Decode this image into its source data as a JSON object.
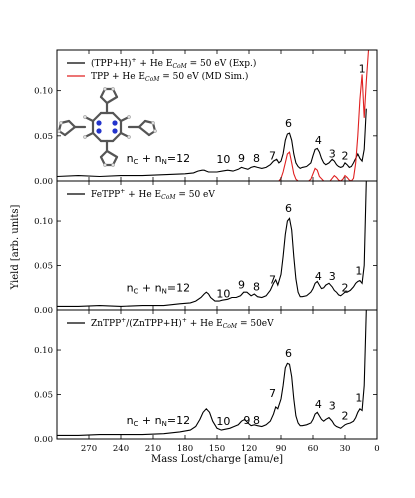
{
  "figure": {
    "ylabel": "Yield [arb. units]",
    "xlabel": "Mass Lost/charge [amu/e]"
  },
  "chart_data": [
    {
      "type": "line",
      "panel": "top",
      "xlim": [
        300,
        0
      ],
      "ylim": [
        0,
        0.145
      ],
      "yticks": [
        "0.00",
        "0.05",
        "0.10"
      ],
      "ytick_values": [
        0.0,
        0.05,
        0.1
      ],
      "xticks": [
        "270",
        "240",
        "210",
        "180",
        "150",
        "120",
        "90",
        "60",
        "30",
        "0"
      ],
      "xtick_values": [
        270,
        240,
        210,
        180,
        150,
        120,
        90,
        60,
        30,
        0
      ],
      "legend_position": "top-left",
      "series": [
        {
          "name": "(TPP+H)⁺ + He Eₖₒₘ = 50 eV (Exp.)",
          "legend_main": "(TPP+H)",
          "legend_sup": "+",
          "legend_mid": " + He E",
          "legend_sub": "CoM",
          "legend_tail": " = 50 eV (Exp.)",
          "color": "#000000",
          "x": [
            300,
            280,
            260,
            240,
            220,
            200,
            180,
            172,
            168,
            164,
            162,
            160,
            158,
            155,
            150,
            145,
            140,
            135,
            130,
            127,
            124,
            121,
            118,
            115,
            112,
            108,
            104,
            100,
            97,
            94,
            92,
            90,
            88,
            86,
            84,
            82,
            80,
            78,
            76,
            74,
            72,
            70,
            66,
            62,
            60,
            58,
            56,
            54,
            52,
            50,
            48,
            45,
            42,
            40,
            38,
            36,
            34,
            32,
            30,
            28,
            26,
            24,
            22,
            20,
            18,
            16,
            14,
            12,
            10
          ],
          "y": [
            0.005,
            0.006,
            0.005,
            0.006,
            0.006,
            0.007,
            0.008,
            0.009,
            0.011,
            0.012,
            0.012,
            0.011,
            0.01,
            0.01,
            0.01,
            0.011,
            0.012,
            0.011,
            0.013,
            0.015,
            0.014,
            0.013,
            0.015,
            0.016,
            0.015,
            0.014,
            0.015,
            0.018,
            0.022,
            0.024,
            0.02,
            0.022,
            0.03,
            0.045,
            0.052,
            0.053,
            0.045,
            0.03,
            0.02,
            0.016,
            0.014,
            0.015,
            0.016,
            0.02,
            0.028,
            0.035,
            0.036,
            0.032,
            0.025,
            0.02,
            0.018,
            0.02,
            0.024,
            0.022,
            0.018,
            0.016,
            0.015,
            0.016,
            0.02,
            0.018,
            0.015,
            0.016,
            0.02,
            0.025,
            0.03,
            0.025,
            0.022,
            0.035,
            0.08
          ]
        },
        {
          "name": "TPP + He Eₖₒₘ = 50 eV (MD Sim.)",
          "legend_main": "TPP",
          "legend_sup": "",
          "legend_mid": " + He E",
          "legend_sub": "CoM",
          "legend_tail": " = 50 eV (MD Sim.)",
          "color": "#e02020",
          "x": [
            300,
            100,
            92,
            90,
            88,
            86,
            84,
            82,
            80,
            78,
            76,
            74,
            70,
            64,
            62,
            60,
            58,
            56,
            54,
            50,
            44,
            42,
            40,
            38,
            36,
            34,
            32,
            30,
            28,
            26,
            24,
            22,
            20,
            18,
            16,
            14,
            12,
            10,
            8
          ],
          "y": [
            0.0,
            0.0,
            0.0,
            0.003,
            0.01,
            0.02,
            0.03,
            0.032,
            0.02,
            0.008,
            0.002,
            0.0,
            0.0,
            0.0,
            0.002,
            0.008,
            0.014,
            0.012,
            0.005,
            0.0,
            0.0,
            0.003,
            0.006,
            0.004,
            0.001,
            0.0,
            0.002,
            0.006,
            0.004,
            0.001,
            0.0,
            0.003,
            0.02,
            0.05,
            0.09,
            0.118,
            0.07,
            0.11,
            0.145
          ]
        }
      ],
      "annotations": [
        {
          "text": "1",
          "x": 14,
          "y": 0.12
        },
        {
          "text": "6",
          "x": 83,
          "y": 0.06
        },
        {
          "text": "4",
          "x": 55,
          "y": 0.041
        },
        {
          "text": "3",
          "x": 42,
          "y": 0.026
        },
        {
          "text": "2",
          "x": 30,
          "y": 0.024
        },
        {
          "text": "7",
          "x": 98,
          "y": 0.024
        },
        {
          "text": "8",
          "x": 113,
          "y": 0.021
        },
        {
          "text": "9",
          "x": 127,
          "y": 0.021
        },
        {
          "text": "10",
          "x": 144,
          "y": 0.02
        },
        {
          "text": "n",
          "sub": "C",
          "mid": " + n",
          "sub2": "N",
          "tail": "=12",
          "x": 205,
          "y": 0.021
        }
      ],
      "inset": "molecule-structure-icon"
    },
    {
      "type": "line",
      "panel": "middle",
      "xlim": [
        300,
        0
      ],
      "ylim": [
        0,
        0.145
      ],
      "yticks": [
        "0.00",
        "0.05",
        "0.10"
      ],
      "ytick_values": [
        0.0,
        0.05,
        0.1
      ],
      "xticks": [
        "270",
        "240",
        "210",
        "180",
        "150",
        "120",
        "90",
        "60",
        "30",
        "0"
      ],
      "xtick_values": [
        270,
        240,
        210,
        180,
        150,
        120,
        90,
        60,
        30,
        0
      ],
      "legend_position": "top-left",
      "series": [
        {
          "name": "FeTPP⁺ + He Eₖₒₘ = 50 eV",
          "legend_main": "FeTPP",
          "legend_sup": "+",
          "legend_mid": " + He E",
          "legend_sub": "CoM",
          "legend_tail": " = 50 eV",
          "color": "#000000",
          "x": [
            300,
            280,
            260,
            240,
            220,
            200,
            185,
            175,
            170,
            165,
            162,
            160,
            158,
            156,
            152,
            148,
            145,
            140,
            136,
            132,
            128,
            125,
            122,
            118,
            115,
            112,
            108,
            104,
            100,
            97,
            95,
            93,
            90,
            88,
            86,
            84,
            82,
            80,
            78,
            76,
            74,
            72,
            70,
            66,
            62,
            60,
            58,
            56,
            54,
            52,
            50,
            48,
            45,
            42,
            40,
            38,
            36,
            34,
            32,
            30,
            28,
            25,
            22,
            20,
            18,
            16,
            14,
            12,
            10
          ],
          "y": [
            0.004,
            0.004,
            0.005,
            0.004,
            0.005,
            0.005,
            0.007,
            0.008,
            0.01,
            0.014,
            0.018,
            0.02,
            0.018,
            0.014,
            0.01,
            0.01,
            0.011,
            0.012,
            0.014,
            0.014,
            0.016,
            0.02,
            0.02,
            0.016,
            0.018,
            0.015,
            0.014,
            0.016,
            0.022,
            0.03,
            0.034,
            0.028,
            0.04,
            0.06,
            0.085,
            0.1,
            0.103,
            0.09,
            0.06,
            0.035,
            0.02,
            0.015,
            0.015,
            0.016,
            0.02,
            0.024,
            0.03,
            0.032,
            0.028,
            0.024,
            0.025,
            0.028,
            0.03,
            0.026,
            0.022,
            0.02,
            0.017,
            0.016,
            0.018,
            0.02,
            0.02,
            0.022,
            0.026,
            0.03,
            0.032,
            0.033,
            0.03,
            0.05,
            0.145
          ]
        }
      ],
      "annotations": [
        {
          "text": "1",
          "x": 17,
          "y": 0.04
        },
        {
          "text": "6",
          "x": 83,
          "y": 0.11
        },
        {
          "text": "4",
          "x": 55,
          "y": 0.034
        },
        {
          "text": "3",
          "x": 42,
          "y": 0.034
        },
        {
          "text": "2",
          "x": 30,
          "y": 0.021
        },
        {
          "text": "7",
          "x": 98,
          "y": 0.03
        },
        {
          "text": "8",
          "x": 113,
          "y": 0.022
        },
        {
          "text": "9",
          "x": 127,
          "y": 0.024
        },
        {
          "text": "10",
          "x": 144,
          "y": 0.014
        },
        {
          "text": "n",
          "sub": "C",
          "mid": " + n",
          "sub2": "N",
          "tail": "=12",
          "x": 205,
          "y": 0.021
        }
      ]
    },
    {
      "type": "line",
      "panel": "bottom",
      "xlim": [
        300,
        0
      ],
      "ylim": [
        0,
        0.145
      ],
      "yticks": [
        "0.00",
        "0.05",
        "0.10"
      ],
      "ytick_values": [
        0.0,
        0.05,
        0.1
      ],
      "xticks": [
        "270",
        "240",
        "210",
        "180",
        "150",
        "120",
        "90",
        "60",
        "30",
        "0"
      ],
      "xtick_values": [
        270,
        240,
        210,
        180,
        150,
        120,
        90,
        60,
        30,
        0
      ],
      "legend_position": "top-left",
      "series": [
        {
          "name": "ZnTPP⁺/(ZnTPP+H)⁺ + He Eₖₒₘ = 50eV",
          "legend_main": "ZnTPP",
          "legend_sup": "+",
          "legend_pre2": "/(ZnTPP+H)",
          "legend_sup2": "+",
          "legend_mid": " + He E",
          "legend_sub": "CoM",
          "legend_tail": " = 50eV",
          "color": "#000000",
          "x": [
            300,
            280,
            260,
            240,
            220,
            200,
            185,
            175,
            170,
            166,
            163,
            160,
            157,
            154,
            150,
            146,
            142,
            138,
            134,
            130,
            127,
            124,
            121,
            118,
            115,
            112,
            108,
            104,
            100,
            97,
            95,
            93,
            90,
            88,
            86,
            84,
            82,
            80,
            78,
            76,
            74,
            72,
            70,
            66,
            62,
            60,
            58,
            56,
            54,
            52,
            50,
            48,
            45,
            42,
            40,
            38,
            36,
            34,
            32,
            30,
            28,
            25,
            22,
            20,
            18,
            16,
            14,
            12,
            10
          ],
          "y": [
            0.004,
            0.004,
            0.005,
            0.005,
            0.005,
            0.006,
            0.008,
            0.01,
            0.014,
            0.022,
            0.03,
            0.034,
            0.03,
            0.02,
            0.012,
            0.01,
            0.011,
            0.012,
            0.014,
            0.016,
            0.02,
            0.022,
            0.018,
            0.015,
            0.016,
            0.015,
            0.014,
            0.016,
            0.02,
            0.028,
            0.036,
            0.034,
            0.045,
            0.06,
            0.08,
            0.085,
            0.084,
            0.07,
            0.045,
            0.026,
            0.018,
            0.015,
            0.015,
            0.016,
            0.018,
            0.022,
            0.028,
            0.03,
            0.026,
            0.022,
            0.02,
            0.022,
            0.024,
            0.02,
            0.016,
            0.014,
            0.013,
            0.012,
            0.014,
            0.016,
            0.017,
            0.018,
            0.02,
            0.024,
            0.03,
            0.034,
            0.032,
            0.06,
            0.145
          ]
        }
      ],
      "annotations": [
        {
          "text": "1",
          "x": 17,
          "y": 0.042
        },
        {
          "text": "6",
          "x": 83,
          "y": 0.092
        },
        {
          "text": "4",
          "x": 55,
          "y": 0.035
        },
        {
          "text": "3",
          "x": 42,
          "y": 0.033
        },
        {
          "text": "2",
          "x": 30,
          "y": 0.022
        },
        {
          "text": "7",
          "x": 98,
          "y": 0.047
        },
        {
          "text": "8",
          "x": 113,
          "y": 0.017
        },
        {
          "text": "9",
          "x": 122,
          "y": 0.017
        },
        {
          "text": "10",
          "x": 144,
          "y": 0.016
        },
        {
          "text": "n",
          "sub": "C",
          "mid": " + n",
          "sub2": "N",
          "tail": "=12",
          "x": 205,
          "y": 0.017
        }
      ]
    }
  ]
}
